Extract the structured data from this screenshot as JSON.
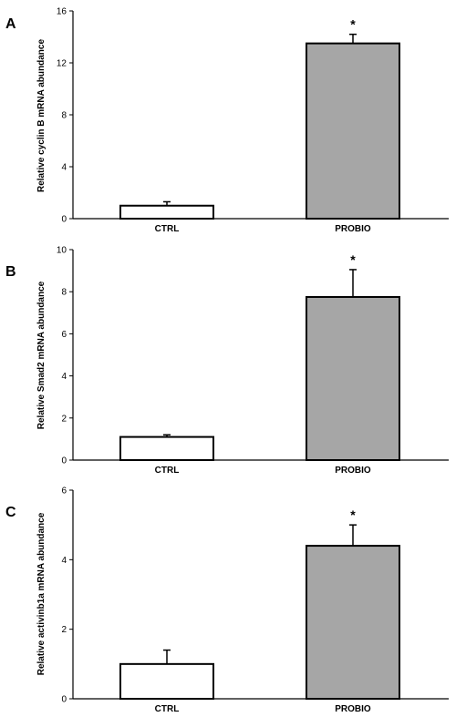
{
  "chart_data": [
    {
      "type": "bar",
      "panel": "A",
      "categories": [
        "CTRL",
        "PROBIO"
      ],
      "values": [
        1.0,
        13.5
      ],
      "errors": [
        0.3,
        0.7
      ],
      "significance": [
        "",
        "*"
      ],
      "ylabel": "Relative cyclin B mRNA abundance",
      "ylim": [
        0,
        16
      ],
      "yticks": [
        0,
        4,
        8,
        12,
        16
      ],
      "colors": [
        "#ffffff",
        "#a6a6a6"
      ]
    },
    {
      "type": "bar",
      "panel": "B",
      "categories": [
        "CTRL",
        "PROBIO"
      ],
      "values": [
        1.1,
        7.75
      ],
      "errors": [
        0.1,
        1.3
      ],
      "significance": [
        "",
        "*"
      ],
      "ylabel": "Relative Smad2 mRNA abundance",
      "ylim": [
        0,
        10
      ],
      "yticks": [
        0,
        2,
        4,
        6,
        8,
        10
      ],
      "colors": [
        "#ffffff",
        "#a6a6a6"
      ]
    },
    {
      "type": "bar",
      "panel": "C",
      "categories": [
        "CTRL",
        "PROBIO"
      ],
      "values": [
        1.0,
        4.4
      ],
      "errors": [
        0.4,
        0.6
      ],
      "significance": [
        "",
        "*"
      ],
      "ylabel": "Relative activinb1a mRNA abundance",
      "ylim": [
        0,
        6
      ],
      "yticks": [
        0,
        2,
        4,
        6
      ],
      "colors": [
        "#ffffff",
        "#a6a6a6"
      ]
    }
  ]
}
